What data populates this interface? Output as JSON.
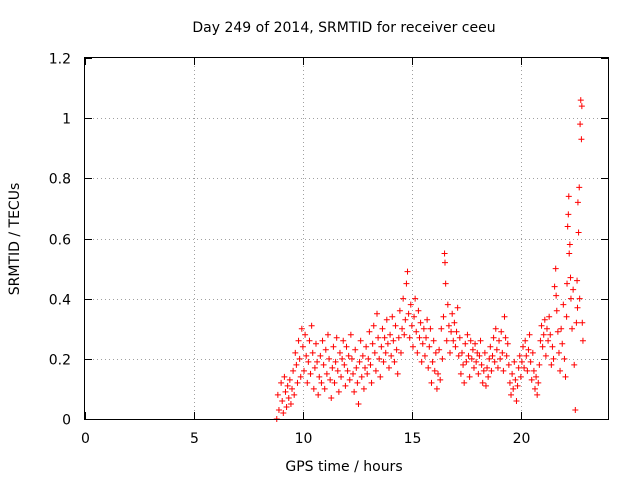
{
  "chart_data": {
    "type": "scatter",
    "title": "Day 249 of 2014, SRMTID for receiver ceeu",
    "xlabel": "GPS time / hours",
    "ylabel": "SRMTID / TECUs",
    "xlim": [
      0,
      24
    ],
    "ylim": [
      0,
      1.2
    ],
    "xticks": [
      0,
      5,
      10,
      15,
      20
    ],
    "xtick_labels": [
      "0",
      "5",
      "10",
      "15",
      "20"
    ],
    "yticks": [
      0,
      0.2,
      0.4,
      0.6,
      0.8,
      1,
      1.2
    ],
    "ytick_labels": [
      "0",
      "0.2",
      "0.4",
      "0.6",
      "0.8",
      "1",
      "1.2"
    ],
    "grid": true,
    "marker": "+",
    "color": "#ff0000",
    "series": [
      {
        "name": "SRMTID",
        "points": [
          [
            8.8,
            0.0
          ],
          [
            8.85,
            0.08
          ],
          [
            8.9,
            0.03
          ],
          [
            9.0,
            0.12
          ],
          [
            9.05,
            0.06
          ],
          [
            9.1,
            0.02
          ],
          [
            9.15,
            0.14
          ],
          [
            9.2,
            0.09
          ],
          [
            9.25,
            0.04
          ],
          [
            9.3,
            0.11
          ],
          [
            9.35,
            0.07
          ],
          [
            9.4,
            0.13
          ],
          [
            9.45,
            0.05
          ],
          [
            9.5,
            0.1
          ],
          [
            9.55,
            0.16
          ],
          [
            9.6,
            0.08
          ],
          [
            9.65,
            0.22
          ],
          [
            9.7,
            0.18
          ],
          [
            9.75,
            0.12
          ],
          [
            9.8,
            0.26
          ],
          [
            9.85,
            0.2
          ],
          [
            9.9,
            0.14
          ],
          [
            9.95,
            0.3
          ],
          [
            10.0,
            0.24
          ],
          [
            10.05,
            0.16
          ],
          [
            10.1,
            0.28
          ],
          [
            10.15,
            0.21
          ],
          [
            10.2,
            0.12
          ],
          [
            10.25,
            0.19
          ],
          [
            10.3,
            0.26
          ],
          [
            10.35,
            0.15
          ],
          [
            10.4,
            0.31
          ],
          [
            10.45,
            0.22
          ],
          [
            10.5,
            0.1
          ],
          [
            10.55,
            0.17
          ],
          [
            10.6,
            0.25
          ],
          [
            10.65,
            0.19
          ],
          [
            10.7,
            0.08
          ],
          [
            10.75,
            0.14
          ],
          [
            10.8,
            0.21
          ],
          [
            10.85,
            0.12
          ],
          [
            10.9,
            0.26
          ],
          [
            10.95,
            0.18
          ],
          [
            11.0,
            0.1
          ],
          [
            11.05,
            0.23
          ],
          [
            11.1,
            0.15
          ],
          [
            11.15,
            0.28
          ],
          [
            11.2,
            0.2
          ],
          [
            11.25,
            0.13
          ],
          [
            11.3,
            0.07
          ],
          [
            11.35,
            0.17
          ],
          [
            11.4,
            0.24
          ],
          [
            11.45,
            0.12
          ],
          [
            11.5,
            0.19
          ],
          [
            11.55,
            0.27
          ],
          [
            11.6,
            0.16
          ],
          [
            11.65,
            0.09
          ],
          [
            11.7,
            0.22
          ],
          [
            11.75,
            0.14
          ],
          [
            11.8,
            0.2
          ],
          [
            11.85,
            0.26
          ],
          [
            11.9,
            0.18
          ],
          [
            11.95,
            0.11
          ],
          [
            12.0,
            0.24
          ],
          [
            12.05,
            0.16
          ],
          [
            12.1,
            0.21
          ],
          [
            12.15,
            0.13
          ],
          [
            12.2,
            0.28
          ],
          [
            12.25,
            0.2
          ],
          [
            12.3,
            0.15
          ],
          [
            12.35,
            0.09
          ],
          [
            12.4,
            0.23
          ],
          [
            12.45,
            0.17
          ],
          [
            12.5,
            0.12
          ],
          [
            12.55,
            0.05
          ],
          [
            12.6,
            0.19
          ],
          [
            12.65,
            0.26
          ],
          [
            12.7,
            0.14
          ],
          [
            12.75,
            0.21
          ],
          [
            12.8,
            0.1
          ],
          [
            12.85,
            0.17
          ],
          [
            12.9,
            0.24
          ],
          [
            12.95,
            0.15
          ],
          [
            13.0,
            0.2
          ],
          [
            13.05,
            0.29
          ],
          [
            13.1,
            0.18
          ],
          [
            13.15,
            0.12
          ],
          [
            13.2,
            0.25
          ],
          [
            13.25,
            0.31
          ],
          [
            13.3,
            0.22
          ],
          [
            13.35,
            0.16
          ],
          [
            13.4,
            0.35
          ],
          [
            13.45,
            0.27
          ],
          [
            13.5,
            0.2
          ],
          [
            13.55,
            0.14
          ],
          [
            13.6,
            0.24
          ],
          [
            13.65,
            0.3
          ],
          [
            13.7,
            0.19
          ],
          [
            13.75,
            0.27
          ],
          [
            13.8,
            0.22
          ],
          [
            13.85,
            0.33
          ],
          [
            13.9,
            0.25
          ],
          [
            13.95,
            0.17
          ],
          [
            14.0,
            0.28
          ],
          [
            14.05,
            0.21
          ],
          [
            14.1,
            0.34
          ],
          [
            14.15,
            0.26
          ],
          [
            14.2,
            0.19
          ],
          [
            14.25,
            0.31
          ],
          [
            14.3,
            0.23
          ],
          [
            14.35,
            0.15
          ],
          [
            14.4,
            0.27
          ],
          [
            14.45,
            0.36
          ],
          [
            14.5,
            0.22
          ],
          [
            14.55,
            0.3
          ],
          [
            14.6,
            0.4
          ],
          [
            14.65,
            0.28
          ],
          [
            14.7,
            0.33
          ],
          [
            14.75,
            0.45
          ],
          [
            14.8,
            0.49
          ],
          [
            14.85,
            0.35
          ],
          [
            14.9,
            0.27
          ],
          [
            14.95,
            0.38
          ],
          [
            15.0,
            0.31
          ],
          [
            15.05,
            0.24
          ],
          [
            15.1,
            0.34
          ],
          [
            15.15,
            0.4
          ],
          [
            15.2,
            0.29
          ],
          [
            15.25,
            0.22
          ],
          [
            15.3,
            0.36
          ],
          [
            15.35,
            0.27
          ],
          [
            15.4,
            0.32
          ],
          [
            15.45,
            0.19
          ],
          [
            15.5,
            0.25
          ],
          [
            15.55,
            0.3
          ],
          [
            15.6,
            0.21
          ],
          [
            15.65,
            0.27
          ],
          [
            15.7,
            0.33
          ],
          [
            15.75,
            0.17
          ],
          [
            15.8,
            0.24
          ],
          [
            15.85,
            0.3
          ],
          [
            15.9,
            0.12
          ],
          [
            15.95,
            0.19
          ],
          [
            16.0,
            0.26
          ],
          [
            16.05,
            0.16
          ],
          [
            16.1,
            0.22
          ],
          [
            16.15,
            0.1
          ],
          [
            16.2,
            0.15
          ],
          [
            16.25,
            0.23
          ],
          [
            16.3,
            0.13
          ],
          [
            16.35,
            0.3
          ],
          [
            16.4,
            0.2
          ],
          [
            16.45,
            0.34
          ],
          [
            16.5,
            0.55
          ],
          [
            16.52,
            0.52
          ],
          [
            16.55,
            0.45
          ],
          [
            16.6,
            0.26
          ],
          [
            16.65,
            0.38
          ],
          [
            16.7,
            0.31
          ],
          [
            16.75,
            0.22
          ],
          [
            16.8,
            0.29
          ],
          [
            16.85,
            0.35
          ],
          [
            16.9,
            0.26
          ],
          [
            16.95,
            0.32
          ],
          [
            17.0,
            0.24
          ],
          [
            17.05,
            0.29
          ],
          [
            17.1,
            0.37
          ],
          [
            17.15,
            0.21
          ],
          [
            17.2,
            0.27
          ],
          [
            17.25,
            0.15
          ],
          [
            17.3,
            0.22
          ],
          [
            17.35,
            0.18
          ],
          [
            17.4,
            0.12
          ],
          [
            17.45,
            0.25
          ],
          [
            17.5,
            0.19
          ],
          [
            17.55,
            0.28
          ],
          [
            17.6,
            0.21
          ],
          [
            17.65,
            0.14
          ],
          [
            17.7,
            0.26
          ],
          [
            17.75,
            0.2
          ],
          [
            17.8,
            0.23
          ],
          [
            17.85,
            0.17
          ],
          [
            17.9,
            0.25
          ],
          [
            17.95,
            0.19
          ],
          [
            18.0,
            0.22
          ],
          [
            18.05,
            0.15
          ],
          [
            18.1,
            0.21
          ],
          [
            18.15,
            0.26
          ],
          [
            18.2,
            0.18
          ],
          [
            18.25,
            0.12
          ],
          [
            18.3,
            0.16
          ],
          [
            18.35,
            0.22
          ],
          [
            18.4,
            0.11
          ],
          [
            18.45,
            0.17
          ],
          [
            18.5,
            0.14
          ],
          [
            18.55,
            0.2
          ],
          [
            18.6,
            0.24
          ],
          [
            18.65,
            0.16
          ],
          [
            18.7,
            0.21
          ],
          [
            18.75,
            0.27
          ],
          [
            18.8,
            0.19
          ],
          [
            18.85,
            0.3
          ],
          [
            18.9,
            0.23
          ],
          [
            18.95,
            0.17
          ],
          [
            19.0,
            0.26
          ],
          [
            19.05,
            0.2
          ],
          [
            19.1,
            0.29
          ],
          [
            19.15,
            0.22
          ],
          [
            19.2,
            0.16
          ],
          [
            19.25,
            0.34
          ],
          [
            19.3,
            0.27
          ],
          [
            19.35,
            0.21
          ],
          [
            19.4,
            0.25
          ],
          [
            19.45,
            0.18
          ],
          [
            19.5,
            0.12
          ],
          [
            19.55,
            0.08
          ],
          [
            19.6,
            0.15
          ],
          [
            19.65,
            0.1
          ],
          [
            19.7,
            0.19
          ],
          [
            19.75,
            0.13
          ],
          [
            19.8,
            0.06
          ],
          [
            19.85,
            0.11
          ],
          [
            19.9,
            0.17
          ],
          [
            19.95,
            0.21
          ],
          [
            20.0,
            0.14
          ],
          [
            20.05,
            0.19
          ],
          [
            20.1,
            0.24
          ],
          [
            20.15,
            0.17
          ],
          [
            20.2,
            0.26
          ],
          [
            20.25,
            0.21
          ],
          [
            20.3,
            0.16
          ],
          [
            20.35,
            0.23
          ],
          [
            20.4,
            0.28
          ],
          [
            20.45,
            0.19
          ],
          [
            20.5,
            0.13
          ],
          [
            20.55,
            0.22
          ],
          [
            20.6,
            0.16
          ],
          [
            20.65,
            0.1
          ],
          [
            20.7,
            0.14
          ],
          [
            20.75,
            0.08
          ],
          [
            20.8,
            0.12
          ],
          [
            20.85,
            0.18
          ],
          [
            20.9,
            0.26
          ],
          [
            20.95,
            0.31
          ],
          [
            21.0,
            0.24
          ],
          [
            21.05,
            0.28
          ],
          [
            21.1,
            0.33
          ],
          [
            21.15,
            0.21
          ],
          [
            21.2,
            0.3
          ],
          [
            21.25,
            0.26
          ],
          [
            21.3,
            0.34
          ],
          [
            21.35,
            0.28
          ],
          [
            21.4,
            0.18
          ],
          [
            21.45,
            0.24
          ],
          [
            21.5,
            0.2
          ],
          [
            21.55,
            0.44
          ],
          [
            21.6,
            0.5
          ],
          [
            21.62,
            0.41
          ],
          [
            21.65,
            0.36
          ],
          [
            21.7,
            0.29
          ],
          [
            21.75,
            0.22
          ],
          [
            21.8,
            0.16
          ],
          [
            21.85,
            0.3
          ],
          [
            21.9,
            0.25
          ],
          [
            21.95,
            0.38
          ],
          [
            22.0,
            0.2
          ],
          [
            22.05,
            0.14
          ],
          [
            22.1,
            0.34
          ],
          [
            22.12,
            0.45
          ],
          [
            22.15,
            0.64
          ],
          [
            22.18,
            0.68
          ],
          [
            22.2,
            0.74
          ],
          [
            22.22,
            0.55
          ],
          [
            22.25,
            0.58
          ],
          [
            22.28,
            0.47
          ],
          [
            22.3,
            0.4
          ],
          [
            22.35,
            0.3
          ],
          [
            22.4,
            0.43
          ],
          [
            22.45,
            0.18
          ],
          [
            22.5,
            0.03
          ],
          [
            22.55,
            0.32
          ],
          [
            22.58,
            0.46
          ],
          [
            22.6,
            0.37
          ],
          [
            22.62,
            0.72
          ],
          [
            22.65,
            0.62
          ],
          [
            22.68,
            0.77
          ],
          [
            22.7,
            0.4
          ],
          [
            22.72,
            0.98
          ],
          [
            22.75,
            1.06
          ],
          [
            22.78,
            0.93
          ],
          [
            22.8,
            1.04
          ],
          [
            22.82,
            0.32
          ],
          [
            22.85,
            0.26
          ]
        ]
      }
    ]
  }
}
